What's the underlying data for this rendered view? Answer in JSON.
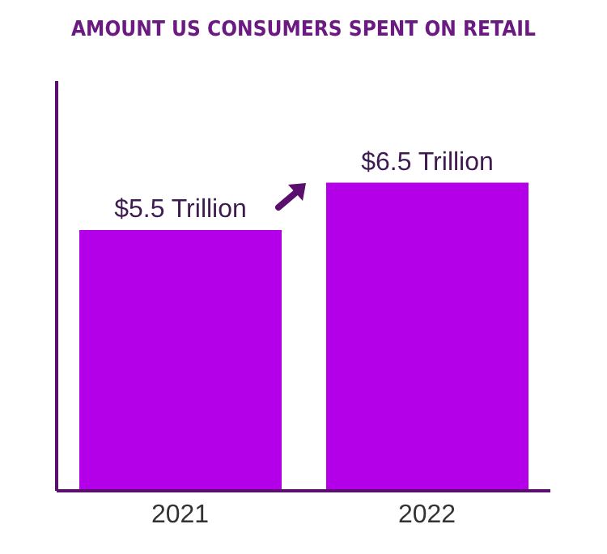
{
  "chart_data": {
    "type": "bar",
    "title": "AMOUNT US CONSUMERS SPENT ON RETAIL",
    "categories": [
      "2021",
      "2022"
    ],
    "values": [
      5.5,
      6.5
    ],
    "value_labels": [
      "$5.5 Trillion",
      "$6.5 Trillion"
    ],
    "color": "#b300e8"
  }
}
